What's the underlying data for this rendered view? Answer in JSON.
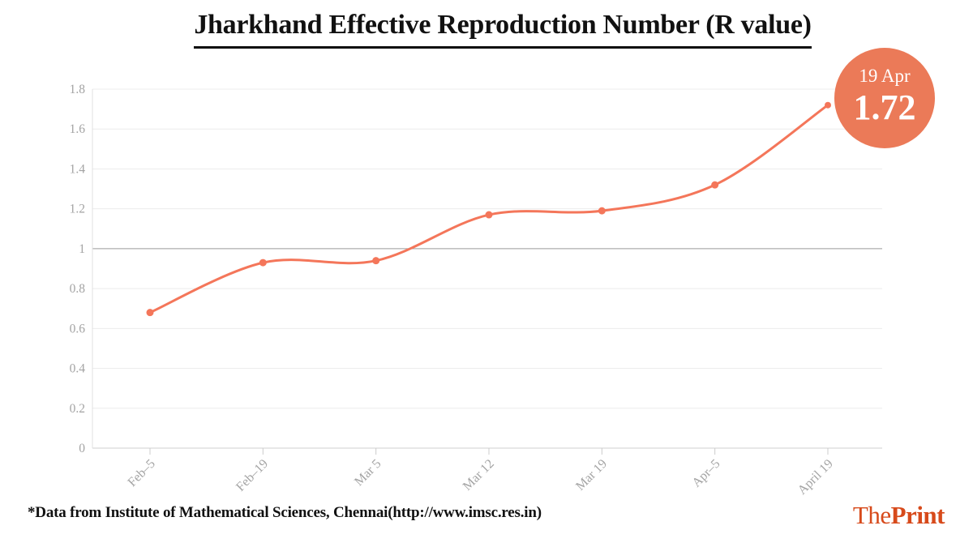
{
  "title": "Jharkhand Effective Reproduction Number (R value)",
  "badge": {
    "date": "19 Apr",
    "value": "1.72",
    "bg_color": "#EB7A58",
    "text_color": "#ffffff"
  },
  "footer": {
    "source_note": "*Data from Institute of Mathematical Sciences, Chennai(http://www.imsc.res.in)"
  },
  "brand": {
    "part1": "The",
    "part2": "Print",
    "color": "#D74A1B"
  },
  "chart_data": {
    "type": "line",
    "title": "Jharkhand Effective Reproduction Number (R value)",
    "categories": [
      "Feb–5",
      "Feb–19",
      "Mar 5",
      "Mar 12",
      "Mar 19",
      "Apr–5",
      "April 19"
    ],
    "values": [
      0.68,
      0.93,
      0.94,
      1.17,
      1.19,
      1.32,
      1.72
    ],
    "xlabel": "",
    "ylabel": "",
    "ylim": [
      0,
      1.8
    ],
    "ytick_step": 0.2,
    "grid": true,
    "reference_line": 1,
    "smooth": true,
    "legend": "none",
    "line_color": "#F4765A",
    "marker_color": "#F4765A",
    "grid_color": "#ececec",
    "reference_line_color": "#9b9b9b",
    "baseline_color": "#cfcfcf",
    "axis_color": "#e0e0e0",
    "tick_color": "#cccccc",
    "tick_label_color": "#a3a3a3"
  }
}
